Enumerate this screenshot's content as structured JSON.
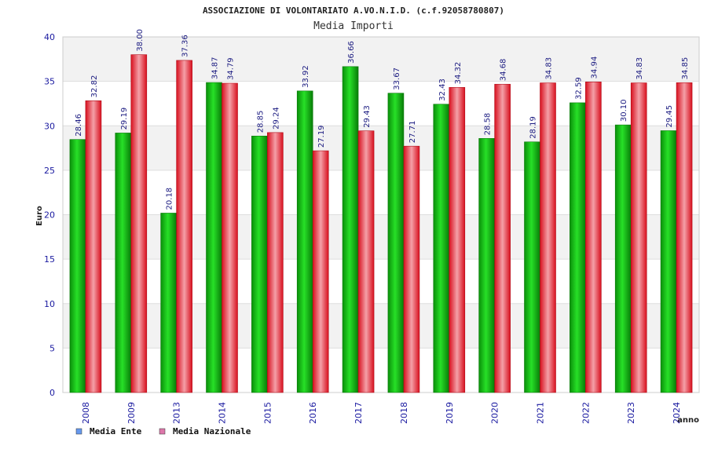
{
  "chart_data": {
    "type": "bar",
    "title": "ASSOCIAZIONE DI VOLONTARIATO A.VO.N.I.D. (c.f.92058780807)",
    "subtitle": "Media Importi",
    "ylabel": "Euro",
    "xlabel": "anno",
    "ylim": [
      0,
      40
    ],
    "yticks": [
      0,
      5,
      10,
      15,
      20,
      25,
      30,
      35,
      40
    ],
    "categories": [
      "2008",
      "2009",
      "2013",
      "2014",
      "2015",
      "2016",
      "2017",
      "2018",
      "2019",
      "2020",
      "2021",
      "2022",
      "2023",
      "2024"
    ],
    "series": [
      {
        "name": "Media Ente",
        "color": "#1fbf1f",
        "values": [
          28.46,
          29.19,
          20.18,
          34.87,
          28.85,
          33.92,
          36.66,
          33.67,
          32.43,
          28.58,
          28.19,
          32.59,
          30.1,
          29.45
        ],
        "labels": [
          "28.46",
          "29.19",
          "20.18",
          "34.87",
          "28.85",
          "33.92",
          "36.66",
          "33.67",
          "32.43",
          "28.58",
          "28.19",
          "32.59",
          "30.10",
          "29.45"
        ]
      },
      {
        "name": "Media Nazionale",
        "color": "#e8283a",
        "values": [
          32.82,
          38.0,
          37.36,
          34.79,
          29.24,
          27.19,
          29.43,
          27.71,
          34.32,
          34.68,
          34.83,
          34.94,
          34.83,
          34.85
        ],
        "labels": [
          "32.82",
          "38.00",
          "37.36",
          "34.79",
          "29.24",
          "27.19",
          "29.43",
          "27.71",
          "34.32",
          "34.68",
          "34.83",
          "34.94",
          "34.83",
          "34.85"
        ]
      }
    ],
    "legend": [
      {
        "label": "Media Ente",
        "swatch": "#6699ee"
      },
      {
        "label": "Media Nazionale",
        "swatch": "#dd77aa"
      }
    ],
    "legend_position": "bottom-left",
    "grid": true
  }
}
